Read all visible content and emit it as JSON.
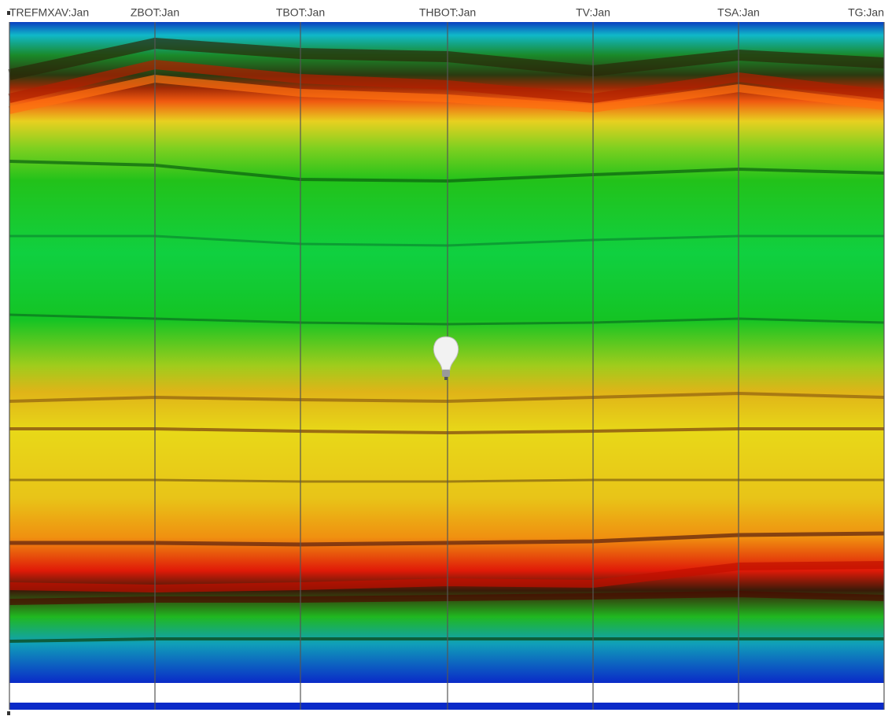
{
  "axes": [
    {
      "label": "TREFMXAV:Jan"
    },
    {
      "label": "ZBOT:Jan"
    },
    {
      "label": "TBOT:Jan"
    },
    {
      "label": "THBOT:Jan"
    },
    {
      "label": "TV:Jan"
    },
    {
      "label": "TSA:Jan"
    },
    {
      "label": "TG:Jan"
    }
  ]
}
